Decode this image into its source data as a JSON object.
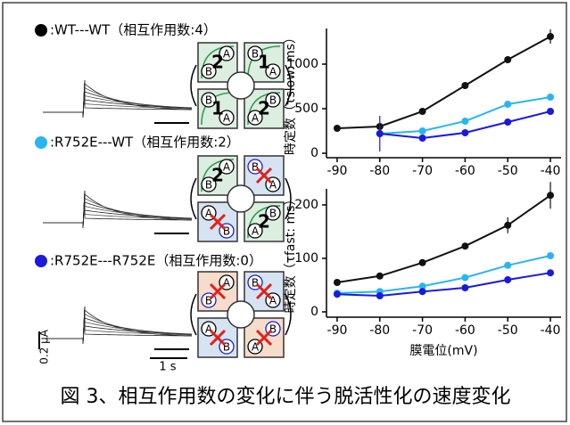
{
  "legend": [
    {
      "label": ":WT---WT（相互作用数:4）",
      "color": "#000000"
    },
    {
      "label": ":R752E---WT（相互作用数:2）",
      "color": "#29b6f0"
    },
    {
      "label": ":R752E---R752E（相互作用数:0）",
      "color": "#1a1adb"
    }
  ],
  "scale_bar": {
    "current": "0.2 µA",
    "time": "1 s"
  },
  "diagrams": [
    {
      "subunits": [
        {
          "fill": "#dbeee0",
          "letters": [
            {
              "text": "A",
              "color": "#000000"
            },
            {
              "text": "B",
              "color": "#000000"
            }
          ],
          "number": "2"
        },
        {
          "fill": "#dbeee0",
          "letters": [
            {
              "text": "B",
              "color": "#000000"
            },
            {
              "text": "A",
              "color": "#000000"
            }
          ],
          "number": "1"
        },
        {
          "fill": "#dbeee0",
          "letters": [
            {
              "text": "B",
              "color": "#000000"
            },
            {
              "text": "A",
              "color": "#000000"
            }
          ],
          "number": "1"
        },
        {
          "fill": "#dbeee0",
          "letters": [
            {
              "text": "B",
              "color": "#000000"
            },
            {
              "text": "A",
              "color": "#000000"
            }
          ],
          "number": "2"
        }
      ]
    },
    {
      "subunits": [
        {
          "fill": "#dbeee0",
          "letters": [
            {
              "text": "A",
              "color": "#000000"
            },
            {
              "text": "B",
              "color": "#000000"
            }
          ],
          "number": "2"
        },
        {
          "fill": "#d6e3f2",
          "letters": [
            {
              "text": "B",
              "color": "#1a1adb"
            },
            {
              "text": "A",
              "color": "#000000"
            }
          ],
          "crossed": true
        },
        {
          "fill": "#d6e3f2",
          "letters": [
            {
              "text": "A",
              "color": "#000000"
            },
            {
              "text": "B",
              "color": "#1a1adb"
            }
          ],
          "crossed": true
        },
        {
          "fill": "#dbeee0",
          "letters": [
            {
              "text": "B",
              "color": "#000000"
            },
            {
              "text": "A",
              "color": "#000000"
            }
          ],
          "number": "2"
        }
      ]
    },
    {
      "subunits": [
        {
          "fill": "#f6dccb",
          "letters": [
            {
              "text": "A",
              "color": "#000000"
            },
            {
              "text": "B",
              "color": "#1a1adb"
            }
          ],
          "crossed": true
        },
        {
          "fill": "#d6e3f2",
          "letters": [
            {
              "text": "B",
              "color": "#1a1adb"
            },
            {
              "text": "A",
              "color": "#000000"
            }
          ],
          "crossed": true
        },
        {
          "fill": "#d6e3f2",
          "letters": [
            {
              "text": "A",
              "color": "#000000"
            },
            {
              "text": "B",
              "color": "#1a1adb"
            }
          ],
          "crossed": true
        },
        {
          "fill": "#f6dccb",
          "letters": [
            {
              "text": "B",
              "color": "#1a1adb"
            },
            {
              "text": "A",
              "color": "#000000"
            }
          ],
          "crossed": true
        }
      ]
    }
  ],
  "chart_data": [
    {
      "type": "line",
      "ylabel": "時定数（τslow: ms）",
      "x": [
        -90,
        -80,
        -70,
        -60,
        -50,
        -40
      ],
      "xlim": [
        -92.5,
        -37.5
      ],
      "xticks": [
        -90,
        -80,
        -70,
        -60,
        -50,
        -40
      ],
      "ylim": [
        -50,
        1400
      ],
      "yticks": [
        0,
        500,
        1000
      ],
      "series": [
        {
          "color": "#111111",
          "values": [
            280,
            300,
            470,
            760,
            1050,
            1310
          ],
          "errors": [
            null,
            null,
            null,
            null,
            null,
            80
          ]
        },
        {
          "color": "#29b6f0",
          "values": [
            null,
            220,
            250,
            360,
            550,
            630
          ]
        },
        {
          "color": "#1a1adb",
          "values": [
            null,
            220,
            170,
            230,
            350,
            470
          ],
          "errors": [
            null,
            200,
            null,
            null,
            null,
            null
          ]
        }
      ]
    },
    {
      "type": "line",
      "ylabel": "時定数（τfast: ms）",
      "xlabel": "膜電位(mV)",
      "x": [
        -90,
        -80,
        -70,
        -60,
        -50,
        -40
      ],
      "xlim": [
        -92.5,
        -37.5
      ],
      "xticks": [
        -90,
        -80,
        -70,
        -60,
        -50,
        -40
      ],
      "ylim": [
        -10,
        230
      ],
      "yticks": [
        0,
        100,
        200
      ],
      "series": [
        {
          "color": "#111111",
          "values": [
            55,
            67,
            92,
            123,
            162,
            218
          ],
          "errors": [
            null,
            null,
            null,
            null,
            15,
            25
          ]
        },
        {
          "color": "#29b6f0",
          "values": [
            35,
            38,
            48,
            64,
            87,
            105
          ]
        },
        {
          "color": "#1a1adb",
          "values": [
            33,
            30,
            38,
            45,
            60,
            73
          ]
        }
      ]
    }
  ],
  "caption": "図 3、相互作用数の変化に伴う脱活性化の速度変化"
}
